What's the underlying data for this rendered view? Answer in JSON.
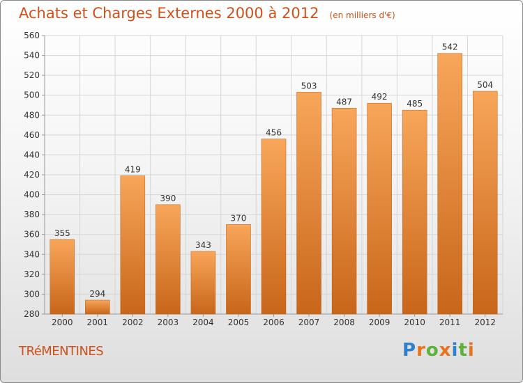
{
  "header": {
    "title": "Achats et Charges Externes 2000 à 2012",
    "subtitle": "(en milliers d'€)"
  },
  "footer": {
    "commune": "TRéMENTINES",
    "logo_text": "Proxiti",
    "logo_colors": [
      "#2f7fcb",
      "#e8731c",
      "#5db13c",
      "#e8731c",
      "#2f7fcb",
      "#5db13c",
      "#e8731c"
    ]
  },
  "colors": {
    "bar_top": "#f8a65a",
    "bar_bottom": "#c8661a",
    "grid": "#d6d6d6",
    "title": "#d0501a"
  },
  "chart_data": {
    "type": "bar",
    "categories": [
      "2000",
      "2001",
      "2002",
      "2003",
      "2004",
      "2005",
      "2006",
      "2007",
      "2008",
      "2009",
      "2010",
      "2011",
      "2012"
    ],
    "values": [
      355,
      294,
      419,
      390,
      343,
      370,
      456,
      503,
      487,
      492,
      485,
      542,
      504
    ],
    "ylim": [
      280,
      560
    ],
    "yticks": [
      280,
      300,
      320,
      340,
      360,
      380,
      400,
      420,
      440,
      460,
      480,
      500,
      520,
      540,
      560
    ],
    "grid": true,
    "xlabel": "",
    "ylabel": ""
  }
}
